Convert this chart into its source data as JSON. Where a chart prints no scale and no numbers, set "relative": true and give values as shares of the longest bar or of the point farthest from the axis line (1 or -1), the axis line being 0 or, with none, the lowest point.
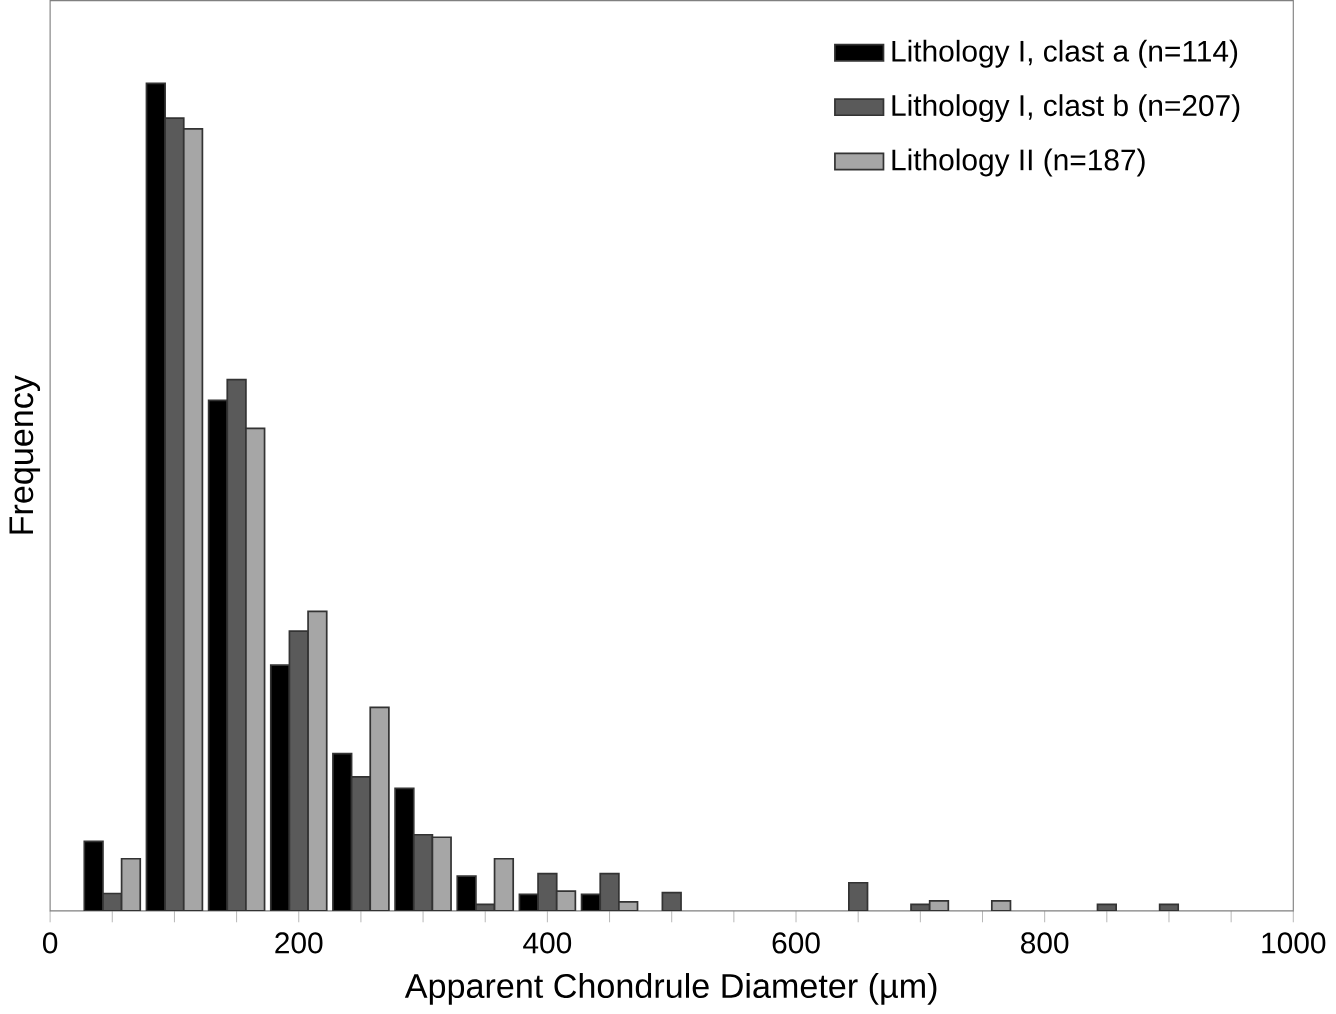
{
  "chart_data": {
    "type": "bar",
    "relative": true,
    "xlabel": "Apparent Chondrule Diameter (µm)",
    "ylabel": "Frequency",
    "legend": "top right",
    "x": [
      50,
      100,
      150,
      200,
      250,
      300,
      350,
      400,
      450,
      500,
      650,
      700,
      750,
      850,
      900
    ],
    "xlim": [
      0,
      1000
    ],
    "xticks": [
      0,
      {
        "value": 50,
        "label": null
      },
      200,
      {
        "value": 100,
        "label": null
      },
      {
        "value": 150,
        "label": null
      },
      {
        "value": 250,
        "label": null
      },
      {
        "value": 300,
        "label": null
      },
      {
        "value": 350,
        "label": null
      },
      400,
      {
        "value": 450,
        "label": null
      },
      {
        "value": 500,
        "label": null
      },
      {
        "value": 550,
        "label": null
      },
      600,
      {
        "value": 650,
        "label": null
      },
      {
        "value": 700,
        "label": null
      },
      {
        "value": 750,
        "label": null
      },
      800,
      {
        "value": 850,
        "label": null
      },
      {
        "value": 900,
        "label": null
      },
      {
        "value": 950,
        "label": null
      },
      1000
    ],
    "series": [
      {
        "name": "Lithology I, clast a (n=114)",
        "color": "#000000",
        "values": [
          0.084,
          1,
          0.617,
          0.297,
          0.19,
          0.148,
          0.042,
          0.02,
          0.02,
          null,
          null,
          null,
          null,
          null,
          null
        ]
      },
      {
        "name": "Lithology I, clast b (n=207)",
        "color": "#5a5a5a",
        "values": [
          0.021,
          0.958,
          0.642,
          0.338,
          0.162,
          0.092,
          0.008,
          0.045,
          0.045,
          0.022,
          0.034,
          0.008,
          null,
          0.008,
          0.008
        ]
      },
      {
        "name": "Lithology II        (n=187)",
        "color": "#a6a6a6",
        "values": [
          0.063,
          0.945,
          0.583,
          0.362,
          0.246,
          0.089,
          0.063,
          0.024,
          0.011,
          null,
          null,
          0.012,
          0.012,
          null,
          null
        ]
      }
    ]
  }
}
